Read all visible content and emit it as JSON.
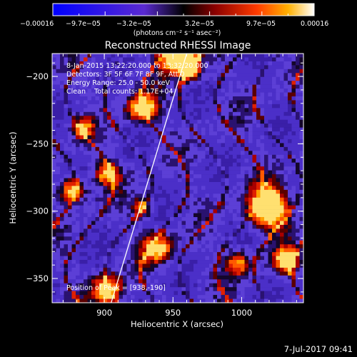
{
  "chart_data": {
    "type": "heatmap",
    "title": "Reconstructed RHESSI Image",
    "xlabel": "Heliocentric X (arcsec)",
    "ylabel": "Heliocentric Y (arcsec)",
    "xlim": [
      862,
      1045
    ],
    "ylim": [
      -368,
      -183
    ],
    "x_ticks": [
      900,
      950,
      1000
    ],
    "y_ticks": [
      -200,
      -250,
      -300,
      -350
    ],
    "x_tick_labels": [
      "900",
      "950",
      "1000"
    ],
    "y_tick_labels": [
      "−200",
      "−250",
      "−300",
      "−350"
    ],
    "colorbar": {
      "ticks": [
        "−0.00016",
        "−9.7e−05",
        "−3.2e−05",
        "3.2e−05",
        "9.7e−05",
        "0.00016"
      ],
      "unit": "(photons cm⁻² s⁻¹ asec⁻²)",
      "range": [
        -0.00016,
        0.00016
      ]
    },
    "annotations": [
      "8-Jan-2015 13:22:20.000 to 13:32:20.000",
      "Detectors: 3F 5F 6F 7F 8F 9F, Att 0",
      "Energy Range: 25.0 - 50.0 keV",
      "Clean    Total counts: 1.17E+04"
    ],
    "peak_label": "Position of Peak = [938,-190]",
    "limb_line": {
      "x": [
        905,
        960
      ],
      "y": [
        -368,
        -183
      ]
    }
  },
  "footer": {
    "timestamp": "7-Jul-2017 09:41"
  }
}
